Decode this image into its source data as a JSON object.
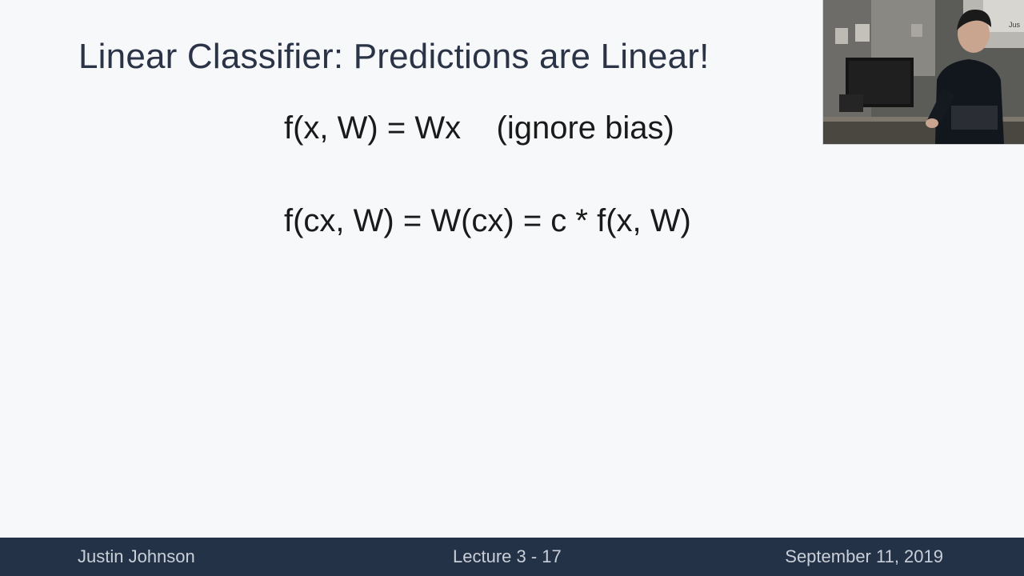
{
  "slide": {
    "title": "Linear Classifier: Predictions are Linear!",
    "equation_1": "f(x, W) = Wx    (ignore bias)",
    "equation_2": "f(cx, W) = W(cx) = c * f(x, W)"
  },
  "footer": {
    "author": "Justin Johnson",
    "lecture": "Lecture 3 - 17",
    "date": "September 11, 2019"
  },
  "webcam": {
    "overlay_text": "Jus"
  }
}
